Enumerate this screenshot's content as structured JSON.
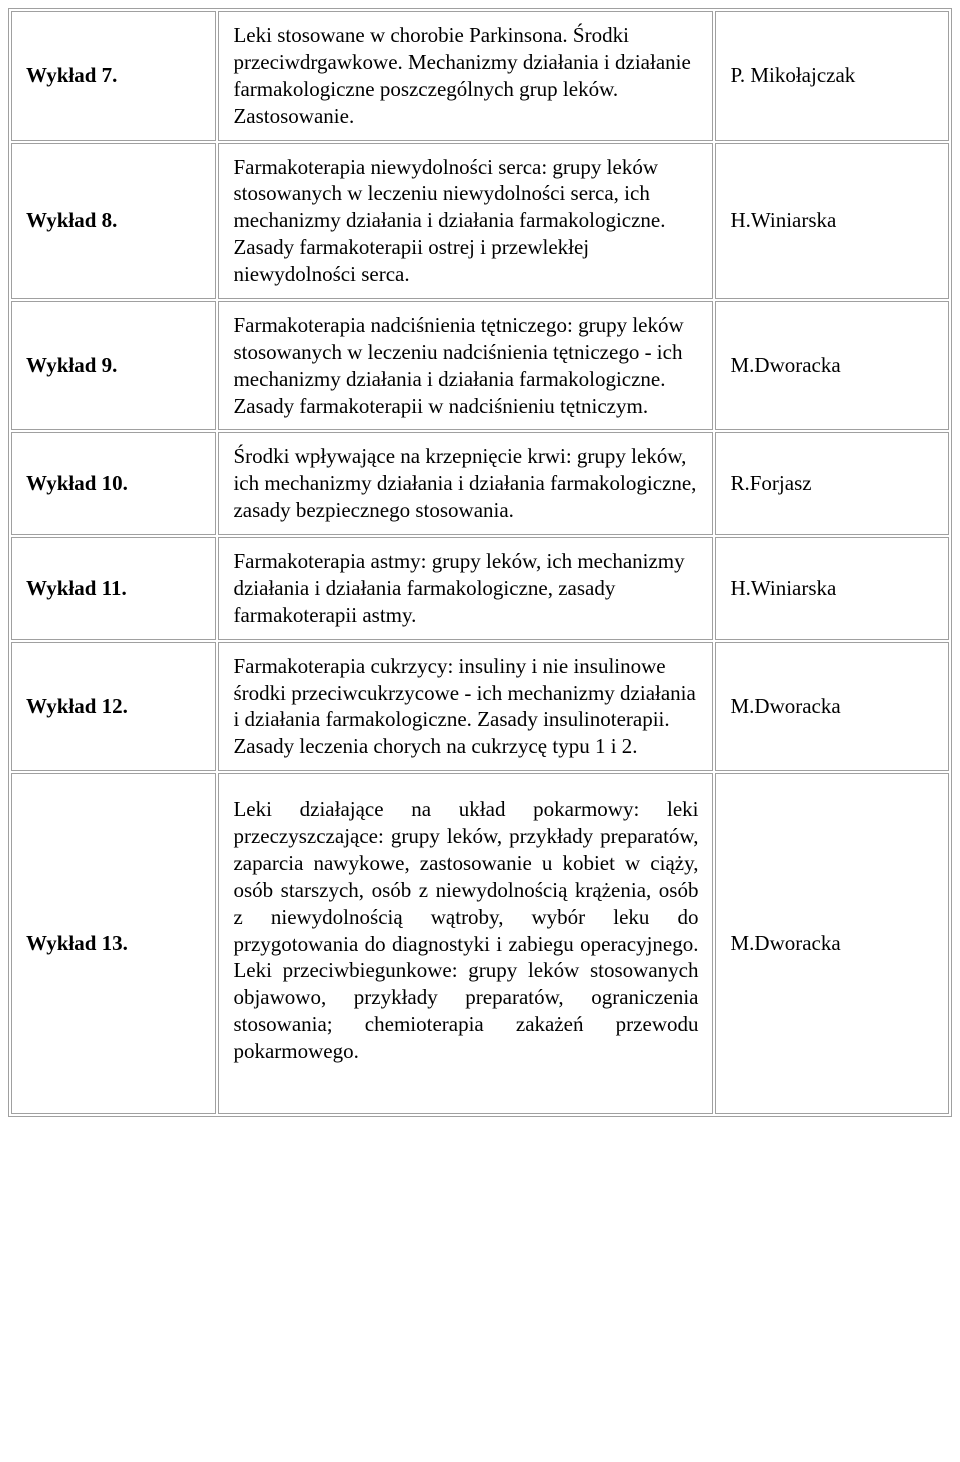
{
  "table": {
    "border_color": "#a0a0a0",
    "background_color": "#ffffff",
    "text_color": "#000000",
    "font_family": "Times New Roman",
    "font_size_pt": 16,
    "column_widths_pct": [
      22,
      53,
      25
    ],
    "rows": [
      {
        "lecture": "Wykład 7.",
        "description": "Leki stosowane w chorobie Parkinsona. Środki przeciwdrgawkowe. Mechanizmy działania i działanie farmakologiczne poszczególnych grup leków. Zastosowanie.",
        "author": "P. Mikołajczak",
        "justify": false
      },
      {
        "lecture": "Wykład 8.",
        "description": "Farmakoterapia niewydolności serca: grupy leków stosowanych w leczeniu niewydolności serca, ich mechanizmy działania i działania farmakologiczne. Zasady farmakoterapii ostrej i przewlekłej niewydolności serca.",
        "author": "H.Winiarska",
        "justify": false
      },
      {
        "lecture": "Wykład 9.",
        "description": "Farmakoterapia nadciśnienia tętniczego: grupy leków stosowanych w leczeniu nadciśnienia tętniczego - ich mechanizmy działania i działania farmakologiczne. Zasady farmakoterapii w nadciśnieniu tętniczym.",
        "author": "M.Dworacka",
        "justify": false
      },
      {
        "lecture": "Wykład 10.",
        "description": "Środki wpływające na krzepnięcie krwi: grupy leków, ich mechanizmy działania i działania farmakologiczne, zasady bezpiecznego stosowania.",
        "author": "R.Forjasz",
        "justify": false
      },
      {
        "lecture": "Wykład 11.",
        "description": "Farmakoterapia astmy: grupy leków, ich mechanizmy działania i działania farmakologiczne, zasady farmakoterapii astmy.",
        "author": "H.Winiarska",
        "justify": false
      },
      {
        "lecture": "Wykład 12.",
        "description": "Farmakoterapia cukrzycy: insuliny i nie insulinowe środki przeciwcukrzycowe - ich mechanizmy działania i działania farmakologiczne. Zasady insulinoterapii. Zasady leczenia chorych na cukrzycę typu 1 i 2.",
        "author": "M.Dworacka",
        "justify": false
      },
      {
        "lecture": "Wykład 13.",
        "description": "Leki działające na układ pokarmowy: leki przeczyszczające: grupy leków, przykłady preparatów, zaparcia nawykowe, zastosowanie u kobiet w ciąży, osób starszych, osób z niewydolnością krążenia, osób z niewydolnością wątroby, wybór leku do przygotowania do diagnostyki i zabiegu operacyjnego. Leki przeciwbiegunkowe: grupy leków stosowanych objawowo, przykłady preparatów, ograniczenia stosowania; chemioterapia zakażeń przewodu pokarmowego.",
        "author": "M.Dworacka",
        "justify": true
      }
    ]
  }
}
